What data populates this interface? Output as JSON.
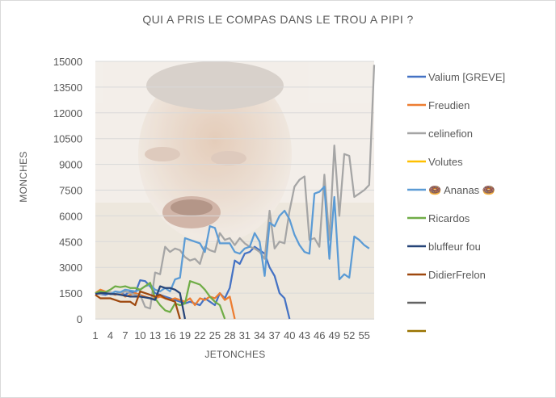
{
  "chart_data": {
    "type": "line",
    "title": "QUI A PRIS LE COMPAS DANS LE TROU A PIPI ?",
    "xlabel": "JETONCHES",
    "ylabel": "MONCHES",
    "ylim": [
      0,
      15000
    ],
    "yticks": [
      0,
      1500,
      3000,
      4500,
      6000,
      7500,
      9000,
      10500,
      12000,
      13500,
      15000
    ],
    "yticklabels": [
      "0",
      "1500",
      "3000",
      "4500",
      "6000",
      "7500",
      "9000",
      "10500",
      "12000",
      "13500",
      "15000"
    ],
    "xlim": [
      1,
      57
    ],
    "xticks": [
      1,
      4,
      7,
      10,
      13,
      16,
      19,
      22,
      25,
      28,
      31,
      34,
      37,
      40,
      43,
      46,
      49,
      52,
      55
    ],
    "xticklabels": [
      "1",
      "4",
      "7",
      "10",
      "13",
      "16",
      "19",
      "22",
      "25",
      "28",
      "31",
      "34",
      "37",
      "40",
      "43",
      "46",
      "49",
      "52",
      "55"
    ],
    "legend_position": "right",
    "grid": "horizontal",
    "series": [
      {
        "name": "Valium [GREVE]",
        "color": "#4472C4",
        "x": [
          1,
          2,
          3,
          4,
          5,
          6,
          7,
          8,
          9,
          10,
          11,
          12,
          13,
          14,
          15,
          16,
          17,
          18,
          19,
          20,
          21,
          22,
          23,
          24,
          25,
          26,
          27,
          28,
          29,
          30,
          31,
          32,
          33,
          34,
          35,
          36,
          37,
          38,
          39,
          40
        ],
        "y": [
          1500,
          1450,
          1400,
          1500,
          1450,
          1500,
          1400,
          1600,
          1500,
          2250,
          2200,
          1900,
          1500,
          1400,
          1300,
          1200,
          1100,
          1000,
          900,
          1000,
          900,
          800,
          1200,
          1000,
          800,
          1500,
          1200,
          1800,
          3400,
          3200,
          3800,
          3900,
          4200,
          4000,
          3800,
          3000,
          2500,
          1500,
          1200,
          0
        ]
      },
      {
        "name": "Freudien",
        "color": "#ED7D31",
        "x": [
          1,
          2,
          3,
          4,
          5,
          6,
          7,
          8,
          9,
          10,
          11,
          12,
          13,
          14,
          15,
          16,
          17,
          18,
          19,
          20,
          21,
          22,
          23,
          24,
          25,
          26,
          27,
          28,
          29
        ],
        "y": [
          1500,
          1700,
          1600,
          1500,
          1400,
          1500,
          1300,
          1400,
          1500,
          1400,
          1300,
          1200,
          1200,
          1300,
          1200,
          1100,
          1200,
          1100,
          1000,
          1200,
          800,
          1200,
          1100,
          1300,
          1200,
          1500,
          1100,
          1300,
          0
        ]
      },
      {
        "name": "celinefion",
        "color": "#A5A5A5",
        "x": [
          1,
          2,
          3,
          4,
          5,
          6,
          7,
          8,
          9,
          10,
          11,
          12,
          13,
          14,
          15,
          16,
          17,
          18,
          19,
          20,
          21,
          22,
          23,
          24,
          25,
          26,
          27,
          28,
          29,
          30,
          31,
          32,
          33,
          34,
          35,
          36,
          37,
          38,
          39,
          40,
          41,
          42,
          43,
          44,
          45,
          46,
          47,
          48,
          49,
          50,
          51,
          52,
          53,
          54,
          55,
          56,
          57
        ],
        "y": [
          1500,
          1450,
          1500,
          1550,
          1450,
          1500,
          1600,
          1500,
          1400,
          1400,
          700,
          600,
          2700,
          2600,
          4200,
          3900,
          4100,
          4000,
          3600,
          3400,
          3500,
          3200,
          4200,
          4000,
          3900,
          5000,
          4600,
          4700,
          4300,
          4700,
          4400,
          4200,
          4100,
          3900,
          3500,
          6300,
          4100,
          4500,
          4400,
          6300,
          7700,
          8100,
          8300,
          4600,
          4700,
          4200,
          8400,
          4600,
          10100,
          6000,
          9600,
          9500,
          7100,
          7300,
          7500,
          7800,
          14800
        ]
      },
      {
        "name": "Volutes",
        "color": "#FFC000",
        "x": [],
        "y": []
      },
      {
        "name": "🍩 Ananas 🍩",
        "color": "#5B9BD5",
        "x": [
          1,
          2,
          3,
          4,
          5,
          6,
          7,
          8,
          9,
          10,
          11,
          12,
          13,
          14,
          15,
          16,
          17,
          18,
          19,
          20,
          21,
          22,
          23,
          24,
          25,
          26,
          27,
          28,
          29,
          30,
          31,
          32,
          33,
          34,
          35,
          36,
          37,
          38,
          39,
          40,
          41,
          42,
          43,
          44,
          45,
          46,
          47,
          48,
          49,
          50,
          51,
          52,
          53,
          54,
          55,
          56
        ],
        "y": [
          1500,
          1550,
          1500,
          1450,
          1600,
          1550,
          1700,
          1650,
          1600,
          1700,
          1900,
          2000,
          1700,
          1600,
          1800,
          1600,
          2300,
          2400,
          4700,
          4600,
          4500,
          4400,
          3900,
          5400,
          5300,
          4400,
          4400,
          4400,
          3900,
          3800,
          4100,
          4200,
          5000,
          4500,
          2500,
          5600,
          5400,
          6000,
          6300,
          5800,
          4900,
          4300,
          3900,
          3800,
          7300,
          7400,
          7700,
          3500,
          7100,
          2300,
          2600,
          2400,
          4800,
          4600,
          4300,
          4100
        ]
      },
      {
        "name": "Ricardos",
        "color": "#70AD47",
        "x": [
          1,
          2,
          3,
          4,
          5,
          6,
          7,
          8,
          9,
          10,
          11,
          12,
          13,
          14,
          15,
          16,
          17,
          18,
          19,
          20,
          21,
          22,
          23,
          24,
          25,
          26,
          27
        ],
        "y": [
          1500,
          1600,
          1550,
          1700,
          1900,
          1850,
          1900,
          1800,
          1800,
          1700,
          1900,
          2100,
          1200,
          800,
          500,
          400,
          900,
          800,
          900,
          2200,
          2100,
          2000,
          1700,
          1300,
          1000,
          800,
          0
        ]
      },
      {
        "name": "bluffeur fou",
        "color": "#264478",
        "x": [
          1,
          2,
          3,
          4,
          5,
          6,
          7,
          8,
          9,
          10,
          11,
          12,
          13,
          14,
          15,
          16,
          17,
          18,
          19
        ],
        "y": [
          1450,
          1500,
          1500,
          1450,
          1450,
          1400,
          1350,
          1300,
          1300,
          1300,
          1250,
          1200,
          1100,
          1900,
          1800,
          1800,
          1700,
          1500,
          0
        ]
      },
      {
        "name": "DidierFrelon",
        "color": "#9E480E",
        "x": [
          1,
          2,
          3,
          4,
          5,
          6,
          7,
          8,
          9,
          10,
          11,
          12,
          13,
          14,
          15,
          16,
          17,
          18
        ],
        "y": [
          1400,
          1200,
          1200,
          1200,
          1100,
          1000,
          1000,
          1000,
          800,
          1600,
          1500,
          1400,
          1300,
          1400,
          1200,
          1100,
          1000,
          0
        ]
      },
      {
        "name": "",
        "color": "#636363",
        "x": [],
        "y": []
      },
      {
        "name": "",
        "color": "#997300",
        "x": [],
        "y": []
      }
    ]
  }
}
